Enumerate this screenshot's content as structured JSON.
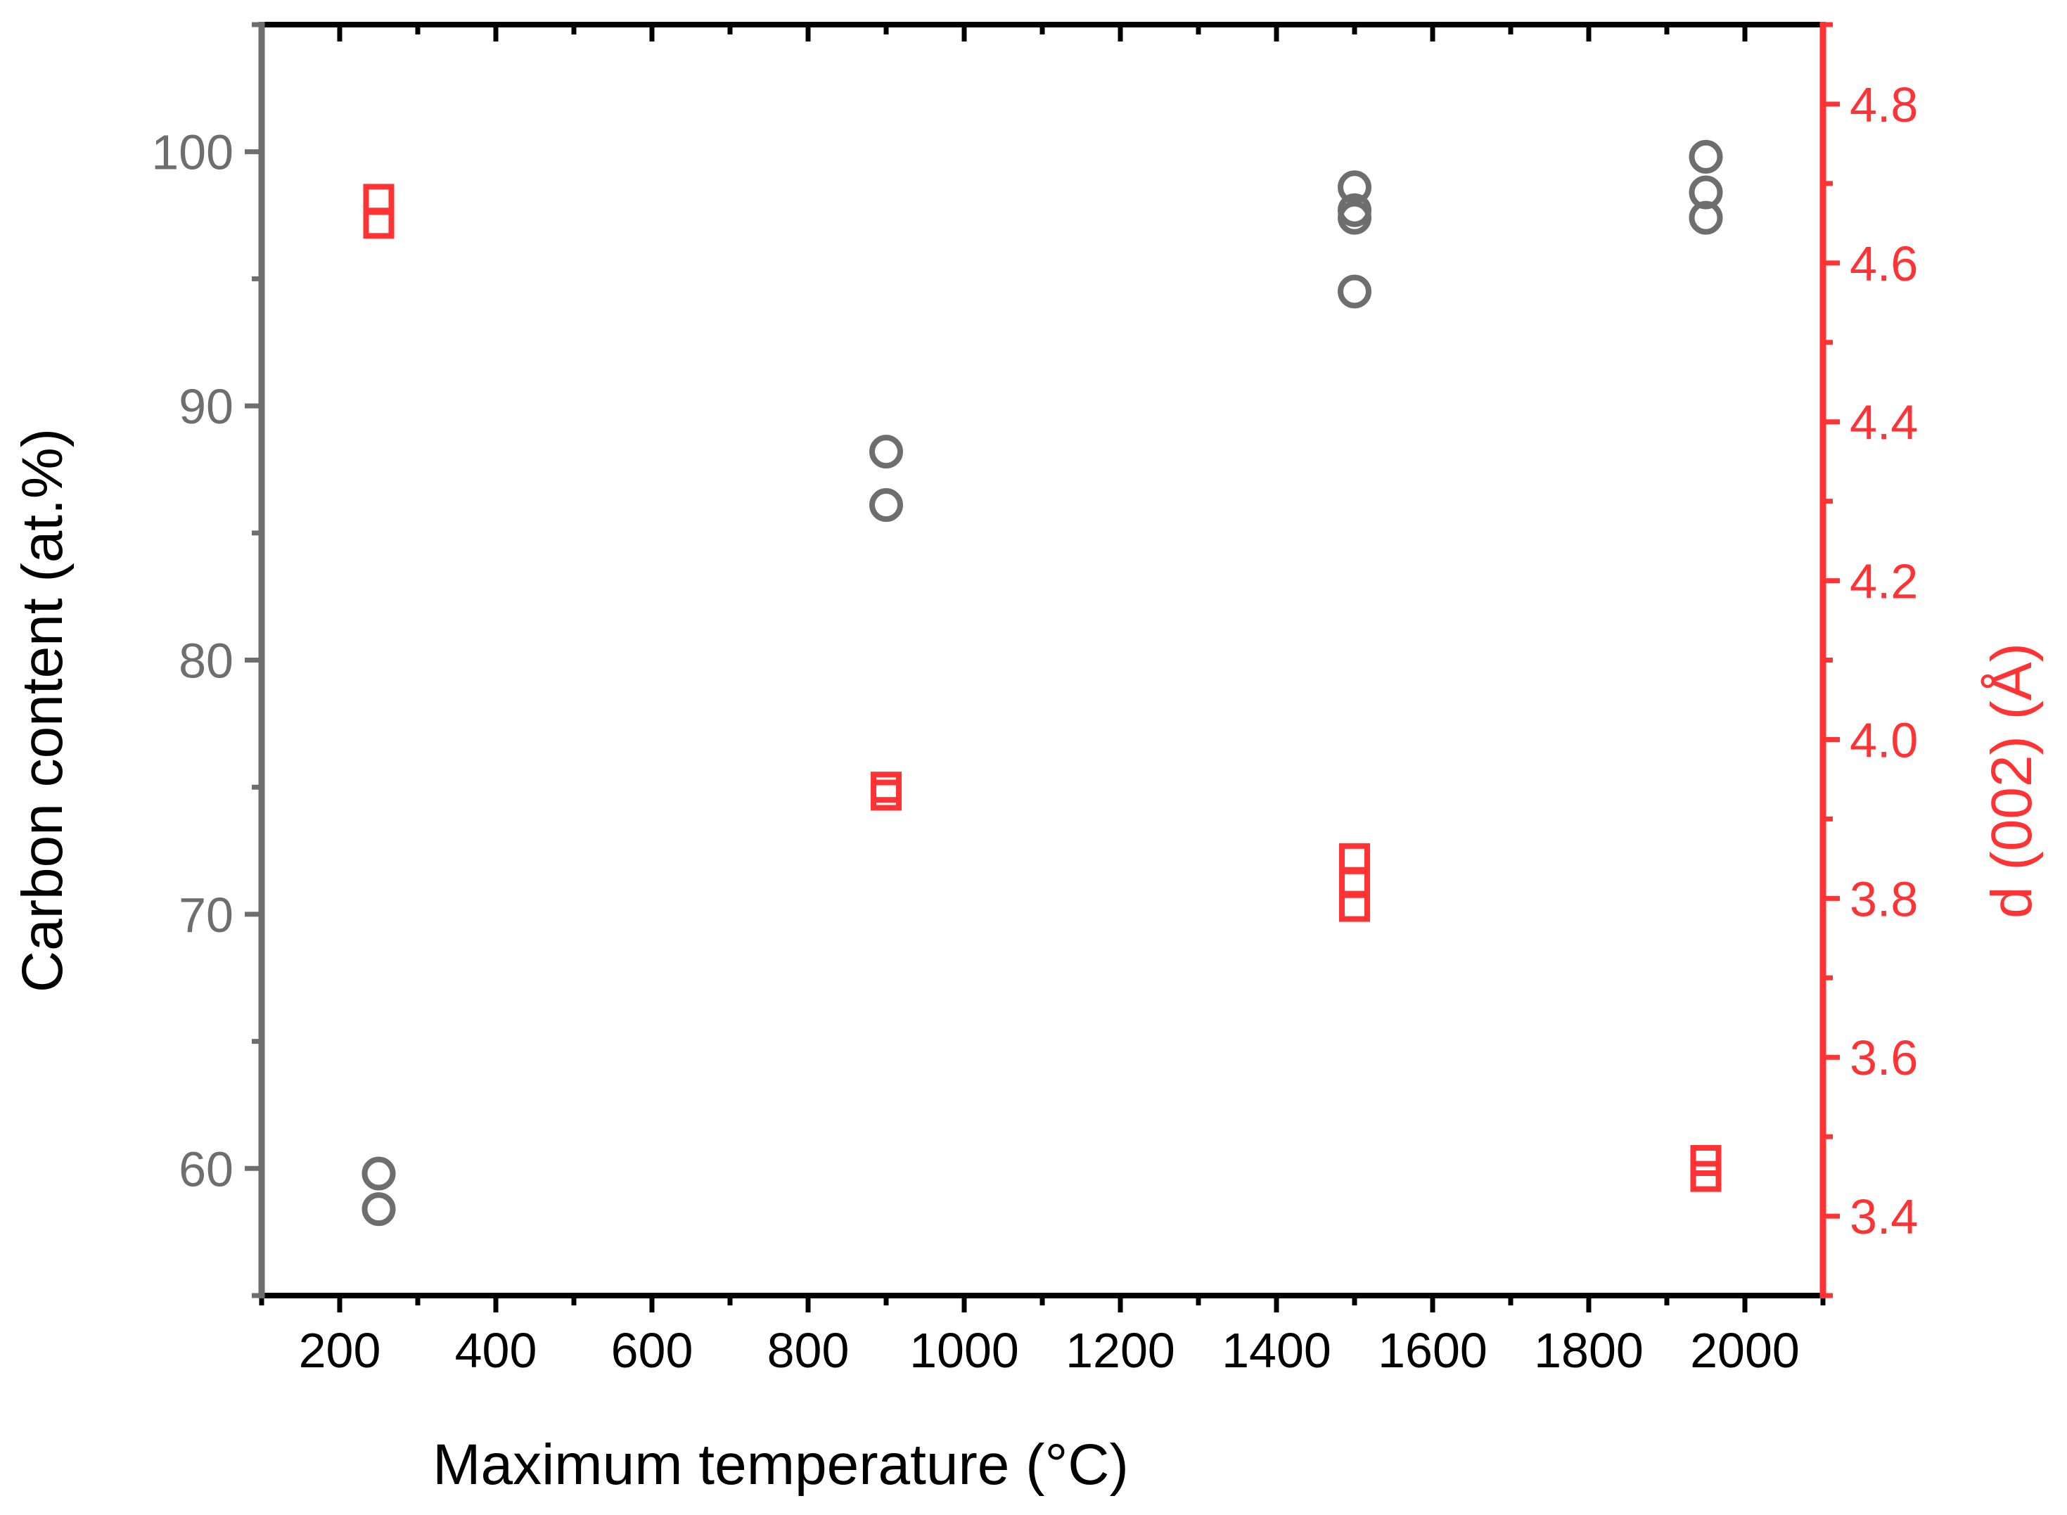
{
  "chart_data": {
    "type": "scatter",
    "xlabel": "Maximum temperature (°C)",
    "ylabel_left": "Carbon content (at.%)",
    "ylabel_right": "d (002) (Å)",
    "xlim": [
      100,
      2100
    ],
    "ylim_left": [
      55,
      105
    ],
    "ylim_right": [
      3.3,
      4.9
    ],
    "x_ticks": [
      "200",
      "400",
      "600",
      "800",
      "1000",
      "1200",
      "1400",
      "1600",
      "1800",
      "2000"
    ],
    "y_left_ticks": [
      "60",
      "70",
      "80",
      "90",
      "100"
    ],
    "y_right_ticks": [
      "3.4",
      "3.6",
      "3.8",
      "4.0",
      "4.2",
      "4.4",
      "4.6",
      "4.8"
    ],
    "grid": false,
    "colors": {
      "left_axis": "#6e6e6e",
      "right_axis": "#ff3333",
      "frame": "#000000"
    },
    "series": [
      {
        "axis": "left",
        "marker": "circle",
        "color": "#6e6e6e",
        "points": [
          [
            250,
            59.8
          ],
          [
            250,
            58.4
          ],
          [
            900,
            88.2
          ],
          [
            900,
            86.1
          ],
          [
            1500,
            98.6
          ],
          [
            1500,
            97.7
          ],
          [
            1500,
            97.4
          ],
          [
            1500,
            94.5
          ],
          [
            1950,
            99.8
          ],
          [
            1950,
            98.4
          ],
          [
            1950,
            97.4
          ]
        ]
      },
      {
        "axis": "right",
        "marker": "square",
        "color": "#ff3333",
        "points": [
          [
            250,
            4.68
          ],
          [
            250,
            4.65
          ],
          [
            900,
            3.94
          ],
          [
            900,
            3.93
          ],
          [
            1500,
            3.85
          ],
          [
            1500,
            3.82
          ],
          [
            1500,
            3.79
          ],
          [
            1950,
            3.47
          ],
          [
            1950,
            3.45
          ]
        ]
      }
    ]
  }
}
